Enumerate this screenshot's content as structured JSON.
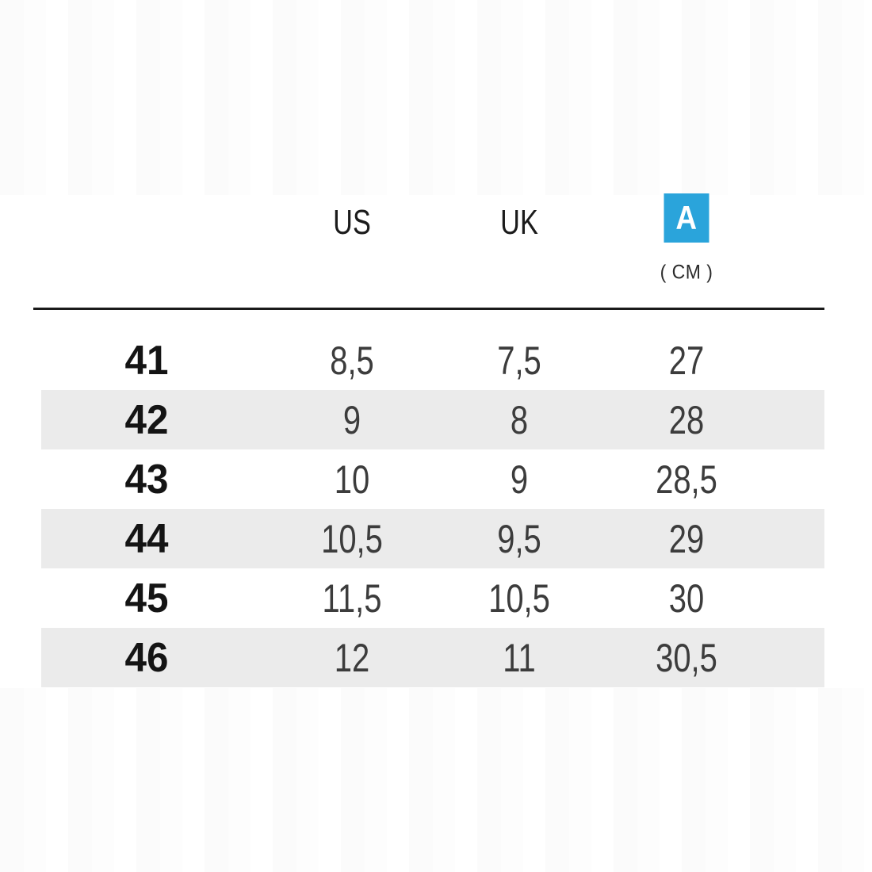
{
  "colors": {
    "accent_blue": "#2aa4db",
    "alt_row": "#ebebeb",
    "divider": "#1a1a1a",
    "size_text": "#141414",
    "value_text": "#3c3c3c"
  },
  "table": {
    "header": {
      "us": "US",
      "uk": "UK",
      "cm_badge": "A",
      "cm_unit": "( CM )"
    },
    "rows": [
      {
        "eu": "41",
        "us": "8,5",
        "uk": "7,5",
        "cm": "27"
      },
      {
        "eu": "42",
        "us": "9",
        "uk": "8",
        "cm": "28"
      },
      {
        "eu": "43",
        "us": "10",
        "uk": "9",
        "cm": "28,5"
      },
      {
        "eu": "44",
        "us": "10,5",
        "uk": "9,5",
        "cm": "29"
      },
      {
        "eu": "45",
        "us": "11,5",
        "uk": "10,5",
        "cm": "30"
      },
      {
        "eu": "46",
        "us": "12",
        "uk": "11",
        "cm": "30,5"
      }
    ]
  },
  "chart_data": {
    "type": "table",
    "title": "",
    "columns": [
      "",
      "US",
      "UK",
      "A ( CM )"
    ],
    "rows": [
      [
        "41",
        "8,5",
        "7,5",
        "27"
      ],
      [
        "42",
        "9",
        "8",
        "28"
      ],
      [
        "43",
        "10",
        "9",
        "28,5"
      ],
      [
        "44",
        "10,5",
        "9,5",
        "29"
      ],
      [
        "45",
        "11,5",
        "10,5",
        "30"
      ],
      [
        "46",
        "12",
        "11",
        "30,5"
      ]
    ],
    "layout": {
      "alternating_row_shading": true,
      "shaded_rows": [
        "42",
        "44",
        "46"
      ],
      "header_divider": true
    }
  }
}
